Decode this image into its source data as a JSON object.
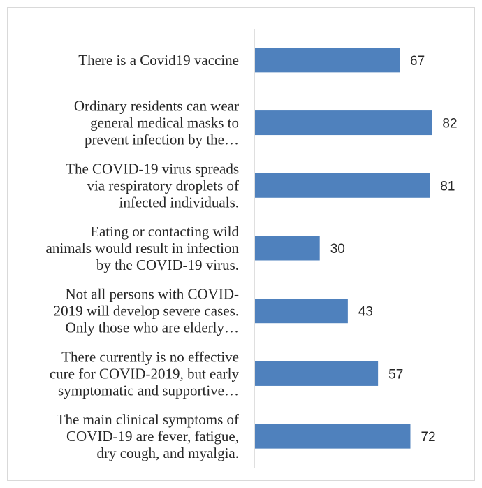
{
  "chart_data": {
    "type": "bar",
    "orientation": "horizontal",
    "title": "",
    "xlabel": "",
    "ylabel": "",
    "categories": [
      [
        "There is  a Covid19 vaccine"
      ],
      [
        "Ordinary residents can wear",
        "general medical masks to",
        "prevent infection by the…"
      ],
      [
        "The COVID-19 virus spreads",
        "via respiratory droplets of",
        "infected individuals."
      ],
      [
        "Eating or contacting wild",
        "animals would result in infection",
        "by the COVID-19 virus."
      ],
      [
        "Not all persons with COVID-",
        "2019 will develop severe cases.",
        "Only those who are elderly…"
      ],
      [
        "There currently is no effective",
        "cure for COVID-2019, but early",
        "symptomatic and supportive…"
      ],
      [
        "The main clinical symptoms of",
        "COVID-19 are fever, fatigue,",
        "dry cough, and myalgia."
      ]
    ],
    "values": [
      67,
      82,
      81,
      30,
      43,
      57,
      72
    ],
    "data_labels": [
      "67",
      "82",
      "81",
      "30",
      "43",
      "57",
      "72"
    ],
    "xlim": [
      0,
      100
    ],
    "grid": false,
    "legend": "none",
    "bar_color": "#4f81bd",
    "axis_color": "#bfbfbf"
  }
}
